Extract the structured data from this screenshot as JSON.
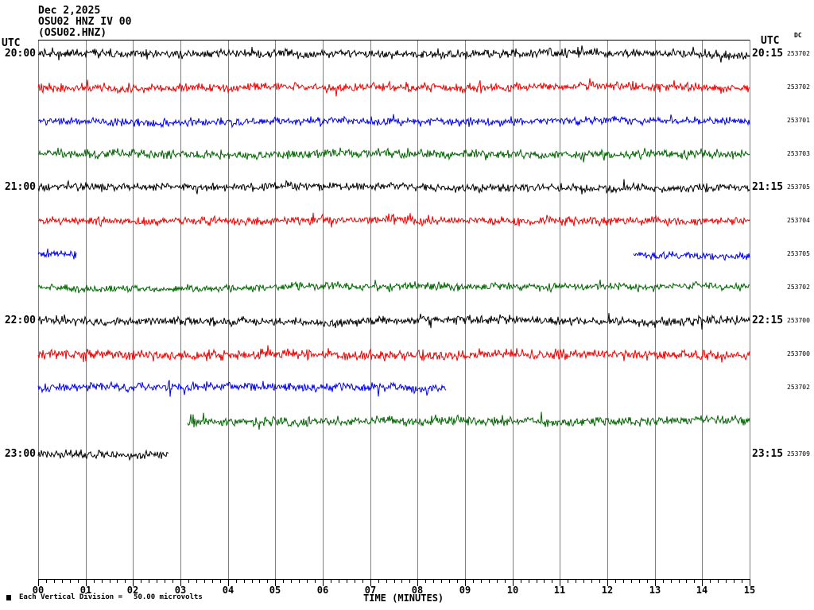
{
  "title": {
    "date": "Dec 2,2025",
    "station": "OSU02 HNZ IV 00",
    "station_code": "(OSU02.HNZ)"
  },
  "left_axis": {
    "header": "UTC"
  },
  "right_axis": {
    "header": "UTC",
    "dc_header": "DC"
  },
  "x_axis": {
    "label": "TIME (MINUTES)",
    "tick_labels": [
      "00",
      "01",
      "02",
      "03",
      "04",
      "05",
      "06",
      "07",
      "08",
      "09",
      "10",
      "11",
      "12",
      "13",
      "14",
      "15"
    ],
    "minutes_total": 15,
    "minor_divisions_per_minute": 6
  },
  "legend": {
    "text": "Each Vertical Division =",
    "value": "50.00 microvolts"
  },
  "colors": {
    "black": "#000000",
    "red": "#ee0000",
    "blue": "#0000ee",
    "green": "#006400",
    "grid": "#808080",
    "background": "#ffffff"
  },
  "chart_data": {
    "type": "line",
    "subtype": "helicorder-seismogram",
    "title": "OSU02 HNZ IV 00 (OSU02.HNZ) Dec 2,2025",
    "xlabel": "TIME (MINUTES)",
    "x_range_minutes": [
      0,
      15
    ],
    "row_duration_minutes": 15,
    "grid": "vertical-per-minute",
    "traces": [
      {
        "row": 0,
        "color": "black",
        "utc_left": "20:00",
        "utc_right": "20:15",
        "dc": "253702",
        "segments": [
          [
            0,
            15
          ]
        ],
        "amp": 1.0,
        "seed": 11
      },
      {
        "row": 1,
        "color": "red",
        "utc_left": "",
        "utc_right": "",
        "dc": "253702",
        "segments": [
          [
            0,
            15
          ]
        ],
        "amp": 1.0,
        "seed": 22
      },
      {
        "row": 2,
        "color": "blue",
        "utc_left": "",
        "utc_right": "",
        "dc": "253701",
        "segments": [
          [
            0,
            15
          ]
        ],
        "amp": 0.9,
        "seed": 33
      },
      {
        "row": 3,
        "color": "green",
        "utc_left": "",
        "utc_right": "",
        "dc": "253703",
        "segments": [
          [
            0,
            15
          ]
        ],
        "amp": 1.0,
        "seed": 44
      },
      {
        "row": 4,
        "color": "black",
        "utc_left": "21:00",
        "utc_right": "21:15",
        "dc": "253705",
        "segments": [
          [
            0,
            15
          ]
        ],
        "amp": 0.9,
        "seed": 55
      },
      {
        "row": 5,
        "color": "red",
        "utc_left": "",
        "utc_right": "",
        "dc": "253704",
        "segments": [
          [
            0,
            15
          ]
        ],
        "amp": 1.0,
        "seed": 66
      },
      {
        "row": 6,
        "color": "blue",
        "utc_left": "",
        "utc_right": "",
        "dc": "253705",
        "segments": [
          [
            0,
            0.8
          ],
          [
            12.55,
            15
          ]
        ],
        "amp": 0.85,
        "seed": 77
      },
      {
        "row": 7,
        "color": "green",
        "utc_left": "",
        "utc_right": "",
        "dc": "253702",
        "segments": [
          [
            0,
            15
          ]
        ],
        "amp": 0.9,
        "seed": 88
      },
      {
        "row": 8,
        "color": "black",
        "utc_left": "22:00",
        "utc_right": "22:15",
        "dc": "253700",
        "segments": [
          [
            0,
            15
          ]
        ],
        "amp": 1.0,
        "seed": 99
      },
      {
        "row": 9,
        "color": "red",
        "utc_left": "",
        "utc_right": "",
        "dc": "253700",
        "segments": [
          [
            0,
            15
          ]
        ],
        "amp": 1.15,
        "seed": 110
      },
      {
        "row": 10,
        "color": "blue",
        "utc_left": "",
        "utc_right": "",
        "dc": "253702",
        "segments": [
          [
            0,
            8.6
          ]
        ],
        "amp": 1.0,
        "seed": 121
      },
      {
        "row": 11,
        "color": "green",
        "utc_left": "",
        "utc_right": "",
        "dc": "",
        "segments": [
          [
            3.15,
            15
          ]
        ],
        "amp": 1.05,
        "seed": 132,
        "onset": true
      },
      {
        "row": 12,
        "color": "black",
        "utc_left": "23:00",
        "utc_right": "23:15",
        "dc": "253709",
        "segments": [
          [
            0,
            2.75
          ]
        ],
        "amp": 1.0,
        "seed": 143
      }
    ]
  }
}
